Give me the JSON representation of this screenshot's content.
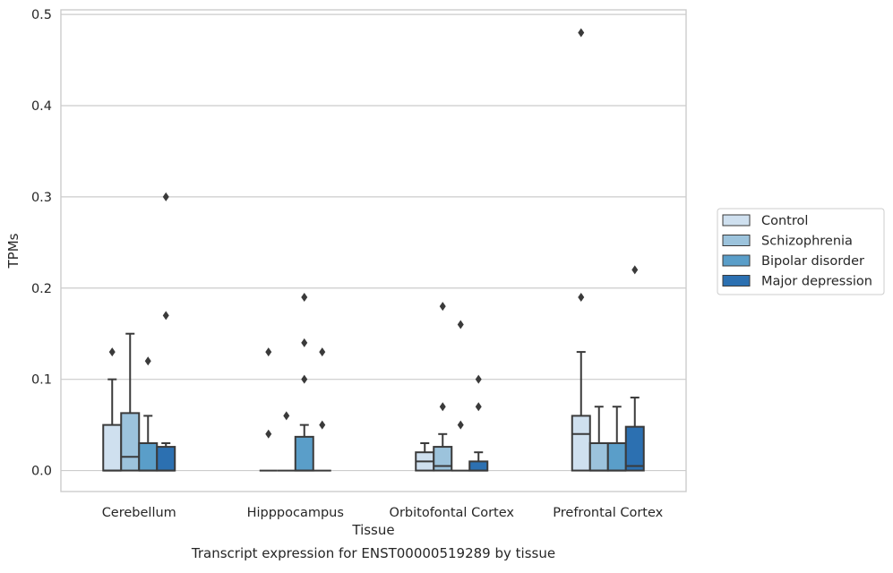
{
  "chart_data": {
    "type": "box",
    "title": "Transcript expression for ENST00000519289 by tissue",
    "xlabel": "Tissue",
    "ylabel": "TPMs",
    "ylim": [
      -0.023,
      0.505
    ],
    "yticks": [
      0.0,
      0.1,
      0.2,
      0.3,
      0.4,
      0.5
    ],
    "ytick_labels": [
      "0.0",
      "0.1",
      "0.2",
      "0.3",
      "0.4",
      "0.5"
    ],
    "grid": "horizontal",
    "legend_position": "outside-right",
    "categories": [
      "Cerebellum",
      "Hipppocampus",
      "Orbitofontal Cortex",
      "Prefrontal Cortex"
    ],
    "series": [
      {
        "name": "Control",
        "color": "#cfe0ef",
        "boxes": [
          {
            "q1": 0.0,
            "median": 0.0,
            "q3": 0.05,
            "whislo": 0.0,
            "whishi": 0.1,
            "fliers": [
              0.13
            ]
          },
          {
            "q1": 0.0,
            "median": 0.0,
            "q3": 0.0,
            "whislo": 0.0,
            "whishi": 0.0,
            "fliers": [
              0.04,
              0.13
            ]
          },
          {
            "q1": 0.0,
            "median": 0.01,
            "q3": 0.02,
            "whislo": 0.0,
            "whishi": 0.03,
            "fliers": []
          },
          {
            "q1": 0.0,
            "median": 0.04,
            "q3": 0.06,
            "whislo": 0.0,
            "whishi": 0.13,
            "fliers": [
              0.19,
              0.48
            ]
          }
        ]
      },
      {
        "name": "Schizophrenia",
        "color": "#9cc3dc",
        "boxes": [
          {
            "q1": 0.0,
            "median": 0.015,
            "q3": 0.063,
            "whislo": 0.0,
            "whishi": 0.15,
            "fliers": []
          },
          {
            "q1": 0.0,
            "median": 0.0,
            "q3": 0.0,
            "whislo": 0.0,
            "whishi": 0.0,
            "fliers": [
              0.06
            ]
          },
          {
            "q1": 0.0,
            "median": 0.005,
            "q3": 0.026,
            "whislo": 0.0,
            "whishi": 0.04,
            "fliers": [
              0.07,
              0.18
            ]
          },
          {
            "q1": 0.0,
            "median": 0.0,
            "q3": 0.03,
            "whislo": 0.0,
            "whishi": 0.07,
            "fliers": []
          }
        ]
      },
      {
        "name": "Bipolar disorder",
        "color": "#5a9ec9",
        "boxes": [
          {
            "q1": 0.0,
            "median": 0.0,
            "q3": 0.03,
            "whislo": 0.0,
            "whishi": 0.06,
            "fliers": [
              0.12
            ]
          },
          {
            "q1": 0.0,
            "median": 0.0,
            "q3": 0.037,
            "whislo": 0.0,
            "whishi": 0.05,
            "fliers": [
              0.1,
              0.14,
              0.19
            ]
          },
          {
            "q1": 0.0,
            "median": 0.0,
            "q3": 0.0,
            "whislo": 0.0,
            "whishi": 0.0,
            "fliers": [
              0.05,
              0.16
            ]
          },
          {
            "q1": 0.0,
            "median": 0.0,
            "q3": 0.03,
            "whislo": 0.0,
            "whishi": 0.07,
            "fliers": []
          }
        ]
      },
      {
        "name": "Major depression",
        "color": "#2c70b1",
        "boxes": [
          {
            "q1": 0.0,
            "median": 0.0,
            "q3": 0.026,
            "whislo": 0.0,
            "whishi": 0.03,
            "fliers": [
              0.17,
              0.3
            ]
          },
          {
            "q1": 0.0,
            "median": 0.0,
            "q3": 0.0,
            "whislo": 0.0,
            "whishi": 0.0,
            "fliers": [
              0.05,
              0.13
            ]
          },
          {
            "q1": 0.0,
            "median": 0.0,
            "q3": 0.01,
            "whislo": 0.0,
            "whishi": 0.02,
            "fliers": [
              0.07,
              0.1
            ]
          },
          {
            "q1": 0.0,
            "median": 0.005,
            "q3": 0.048,
            "whislo": 0.0,
            "whishi": 0.08,
            "fliers": [
              0.22
            ]
          }
        ]
      }
    ]
  }
}
